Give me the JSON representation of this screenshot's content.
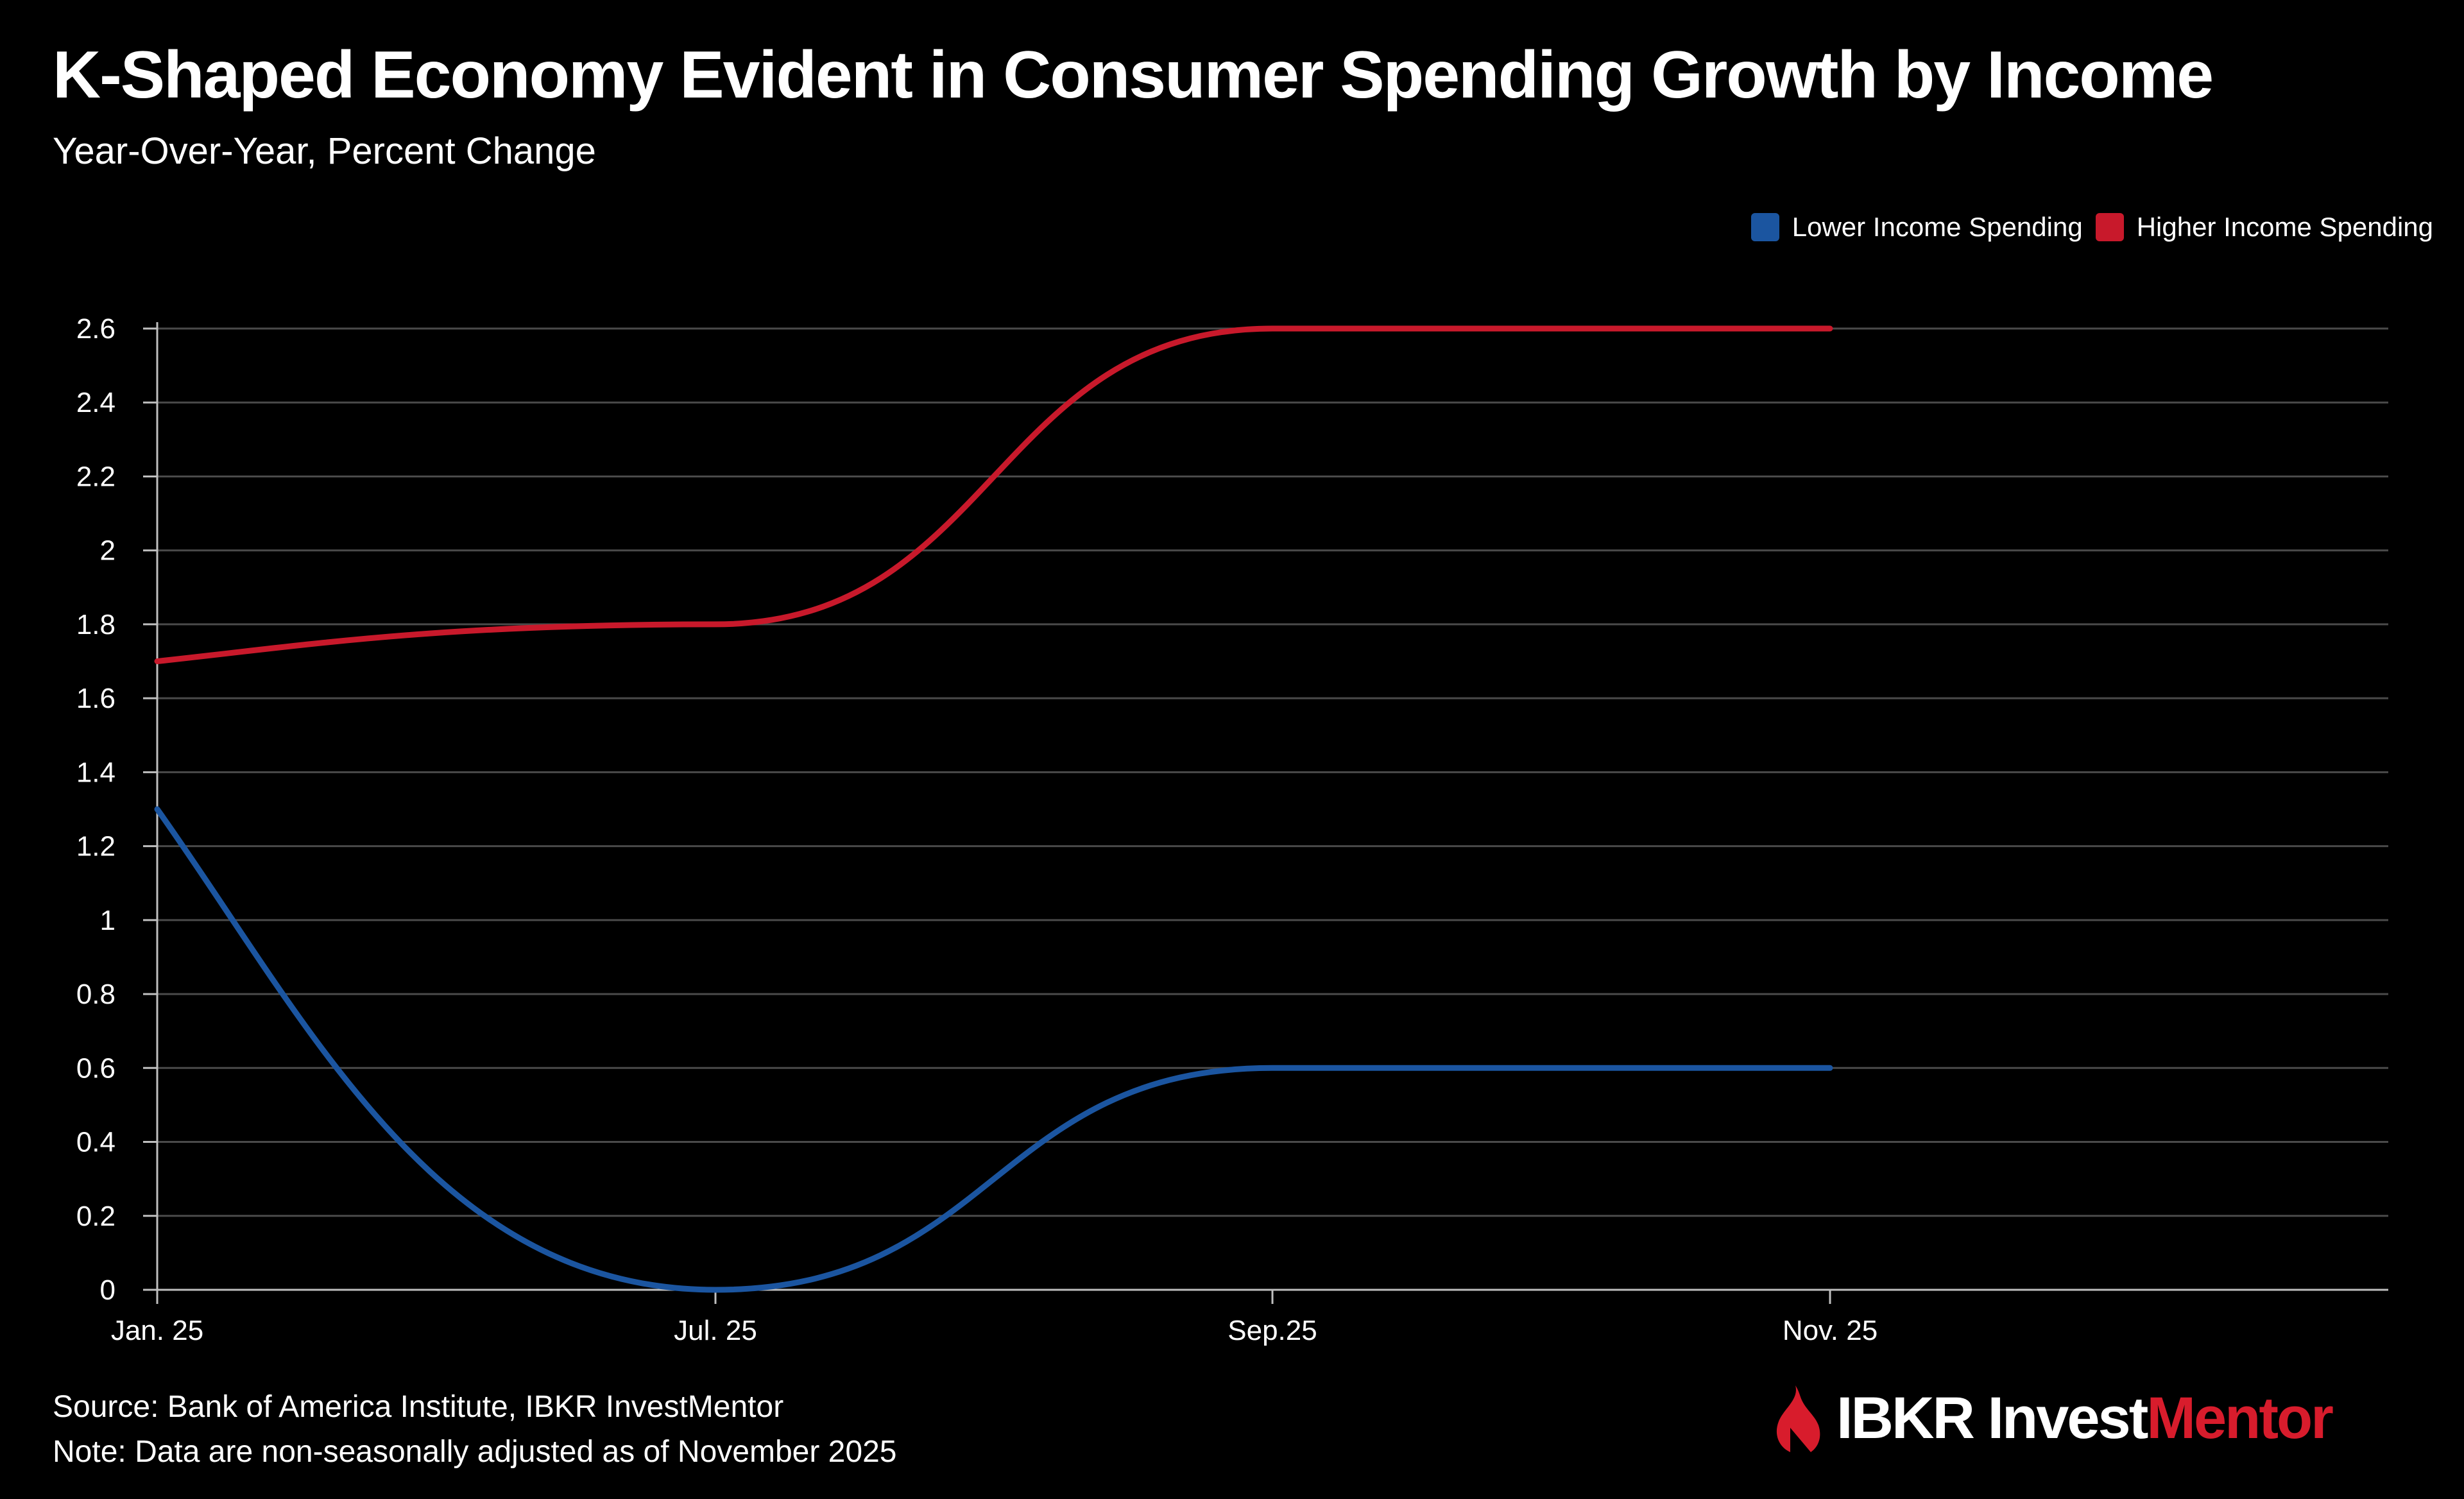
{
  "header": {
    "title": "K-Shaped Economy Evident in Consumer Spending Growth by Income",
    "subtitle": "Year-Over-Year, Percent Change"
  },
  "footer": {
    "source": "Source: Bank of America Institute, IBKR InvestMentor",
    "note": "Note: Data are non-seasonally adjusted as of November 2025"
  },
  "brand": {
    "name_primary": "IBKR Invest",
    "name_accent": "Mentor",
    "accent_color": "#d81c2c"
  },
  "colors": {
    "background": "#000000",
    "gridline": "#4a4a4a",
    "axis": "#bfbfbf",
    "text": "#ffffff"
  },
  "chart_data": {
    "type": "line",
    "title": "K-Shaped Economy Evident in Consumer Spending Growth by Income",
    "subtitle": "Year-Over-Year, Percent Change",
    "xlabel": "",
    "ylabel": "",
    "categories": [
      "Jan. 25",
      "Jul. 25",
      "Sep.25",
      "Nov. 25"
    ],
    "x_extent": [
      0,
      4
    ],
    "ylim": [
      0,
      2.6
    ],
    "yticks": [
      0,
      0.2,
      0.4,
      0.6,
      0.8,
      1,
      1.2,
      1.4,
      1.6,
      1.8,
      2,
      2.2,
      2.4,
      2.6
    ],
    "ytick_labels": [
      "0",
      "0.2",
      "0.4",
      "0.6",
      "0.8",
      "1",
      "1.2",
      "1.4",
      "1.6",
      "1.8",
      "2",
      "2.2",
      "2.4",
      "2.6"
    ],
    "grid": true,
    "legend_position": "top-right",
    "smooth": true,
    "series": [
      {
        "name": "Lower Income Spending",
        "color": "#1b55a0",
        "values": [
          1.3,
          0.0,
          0.6,
          0.6
        ]
      },
      {
        "name": "Higher Income Spending",
        "color": "#c8192b",
        "values": [
          1.7,
          1.8,
          2.6,
          2.6
        ]
      }
    ]
  }
}
